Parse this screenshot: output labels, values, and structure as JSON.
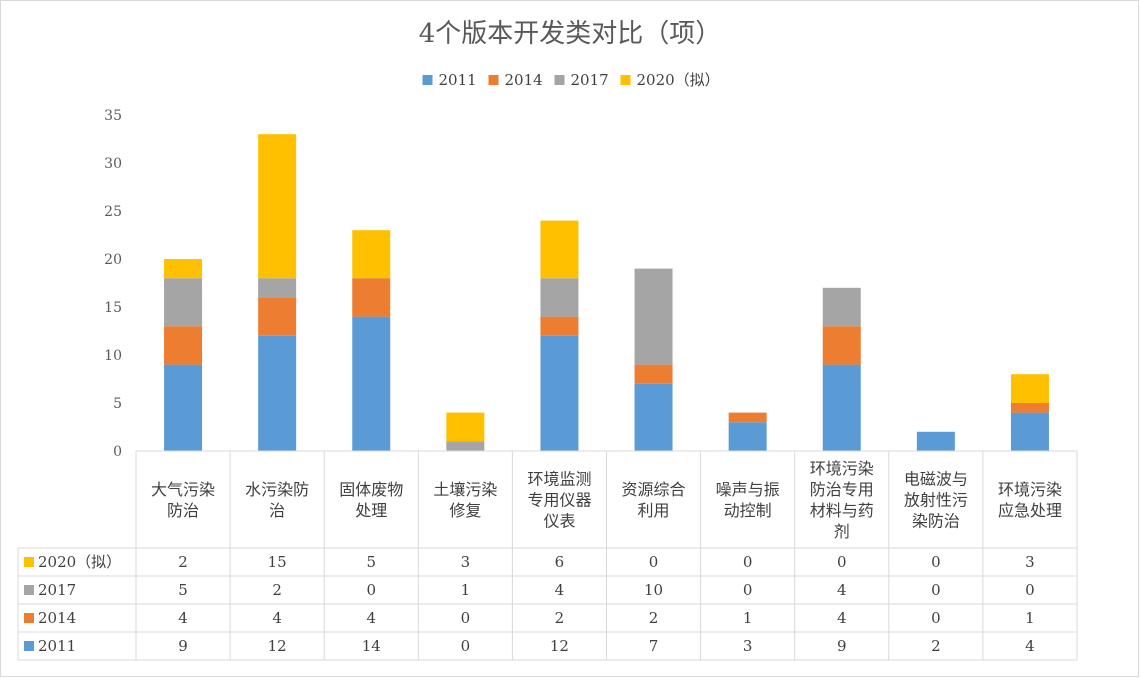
{
  "chart_data": {
    "type": "bar",
    "stacked": true,
    "title": "4个版本开发类对比（项）",
    "categories": [
      [
        "大气污染",
        "防治"
      ],
      [
        "水污染防",
        "治"
      ],
      [
        "固体废物",
        "处理"
      ],
      [
        "土壤污染",
        "修复"
      ],
      [
        "环境监测",
        "专用仪器",
        "仪表"
      ],
      [
        "资源综合",
        "利用"
      ],
      [
        "噪声与振",
        "动控制"
      ],
      [
        "环境污染",
        "防治专用",
        "材料与药",
        "剂"
      ],
      [
        "电磁波与",
        "放射性污",
        "染防治"
      ],
      [
        "环境污染",
        "应急处理"
      ]
    ],
    "series": [
      {
        "name": "2011",
        "color": "#5b9bd5",
        "values": [
          9,
          12,
          14,
          0,
          12,
          7,
          3,
          9,
          2,
          4
        ]
      },
      {
        "name": "2014",
        "color": "#ed7d31",
        "values": [
          4,
          4,
          4,
          0,
          2,
          2,
          1,
          4,
          0,
          1
        ]
      },
      {
        "name": "2017",
        "color": "#a5a5a5",
        "values": [
          5,
          2,
          0,
          1,
          4,
          10,
          0,
          4,
          0,
          0
        ]
      },
      {
        "name": "2020（拟）",
        "color": "#ffc000",
        "values": [
          2,
          15,
          5,
          3,
          6,
          0,
          0,
          0,
          0,
          3
        ]
      }
    ],
    "ylim": [
      0,
      35
    ],
    "yticks": [
      0,
      5,
      10,
      15,
      20,
      25,
      30,
      35
    ],
    "grid": false,
    "legend": "top",
    "data_table": true
  }
}
